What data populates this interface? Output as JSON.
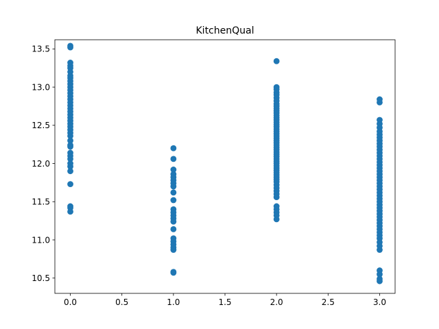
{
  "chart_data": {
    "type": "scatter",
    "title": "KitchenQual",
    "xlabel": "",
    "ylabel": "",
    "xlim": [
      -0.15,
      3.15
    ],
    "ylim": [
      10.3,
      13.62
    ],
    "grid": false,
    "marker_color": "#1f77b4",
    "xticks": [
      0.0,
      0.5,
      1.0,
      1.5,
      2.0,
      2.5,
      3.0
    ],
    "xtick_labels": [
      "0.0",
      "0.5",
      "1.0",
      "1.5",
      "2.0",
      "2.5",
      "3.0"
    ],
    "yticks": [
      10.5,
      11.0,
      11.5,
      12.0,
      12.5,
      13.0,
      13.5
    ],
    "ytick_labels": [
      "10.5",
      "11.0",
      "11.5",
      "12.0",
      "12.5",
      "13.0",
      "13.5"
    ],
    "series": [
      {
        "x_category": 0,
        "values": [
          13.54,
          13.52,
          13.32,
          13.28,
          13.25,
          13.2,
          13.15,
          13.12,
          13.08,
          13.04,
          13.0,
          12.96,
          12.92,
          12.88,
          12.84,
          12.8,
          12.76,
          12.72,
          12.68,
          12.64,
          12.6,
          12.56,
          12.52,
          12.48,
          12.44,
          12.4,
          12.36,
          12.3,
          12.24,
          12.22,
          12.14,
          12.1,
          12.06,
          12.0,
          11.96,
          11.9,
          11.73,
          11.44,
          11.42,
          11.37
        ]
      },
      {
        "x_category": 1,
        "values": [
          12.2,
          12.06,
          11.92,
          11.86,
          11.82,
          11.78,
          11.74,
          11.7,
          11.62,
          11.52,
          11.4,
          11.36,
          11.32,
          11.28,
          11.24,
          11.14,
          11.02,
          10.98,
          10.94,
          10.9,
          10.87,
          10.58,
          10.57
        ]
      },
      {
        "x_category": 2,
        "values": [
          13.34,
          13.0,
          12.97,
          12.93,
          12.9,
          12.86,
          12.82,
          12.78,
          12.75,
          12.72,
          12.69,
          12.66,
          12.63,
          12.6,
          12.57,
          12.54,
          12.51,
          12.48,
          12.45,
          12.42,
          12.39,
          12.36,
          12.33,
          12.3,
          12.27,
          12.24,
          12.21,
          12.18,
          12.15,
          12.12,
          12.09,
          12.06,
          12.03,
          12.0,
          11.97,
          11.94,
          11.91,
          11.88,
          11.85,
          11.82,
          11.79,
          11.76,
          11.72,
          11.68,
          11.64,
          11.6,
          11.56,
          11.44,
          11.4,
          11.36,
          11.32,
          11.27
        ]
      },
      {
        "x_category": 3,
        "values": [
          12.84,
          12.8,
          12.57,
          12.52,
          12.47,
          12.42,
          12.38,
          12.34,
          12.3,
          12.26,
          12.22,
          12.18,
          12.14,
          12.1,
          12.06,
          12.02,
          11.98,
          11.94,
          11.9,
          11.86,
          11.82,
          11.78,
          11.74,
          11.7,
          11.66,
          11.62,
          11.58,
          11.54,
          11.5,
          11.46,
          11.42,
          11.38,
          11.34,
          11.3,
          11.26,
          11.22,
          11.18,
          11.14,
          11.1,
          11.06,
          11.02,
          10.97,
          10.92,
          10.87,
          10.6,
          10.55,
          10.49,
          10.46
        ]
      }
    ]
  }
}
